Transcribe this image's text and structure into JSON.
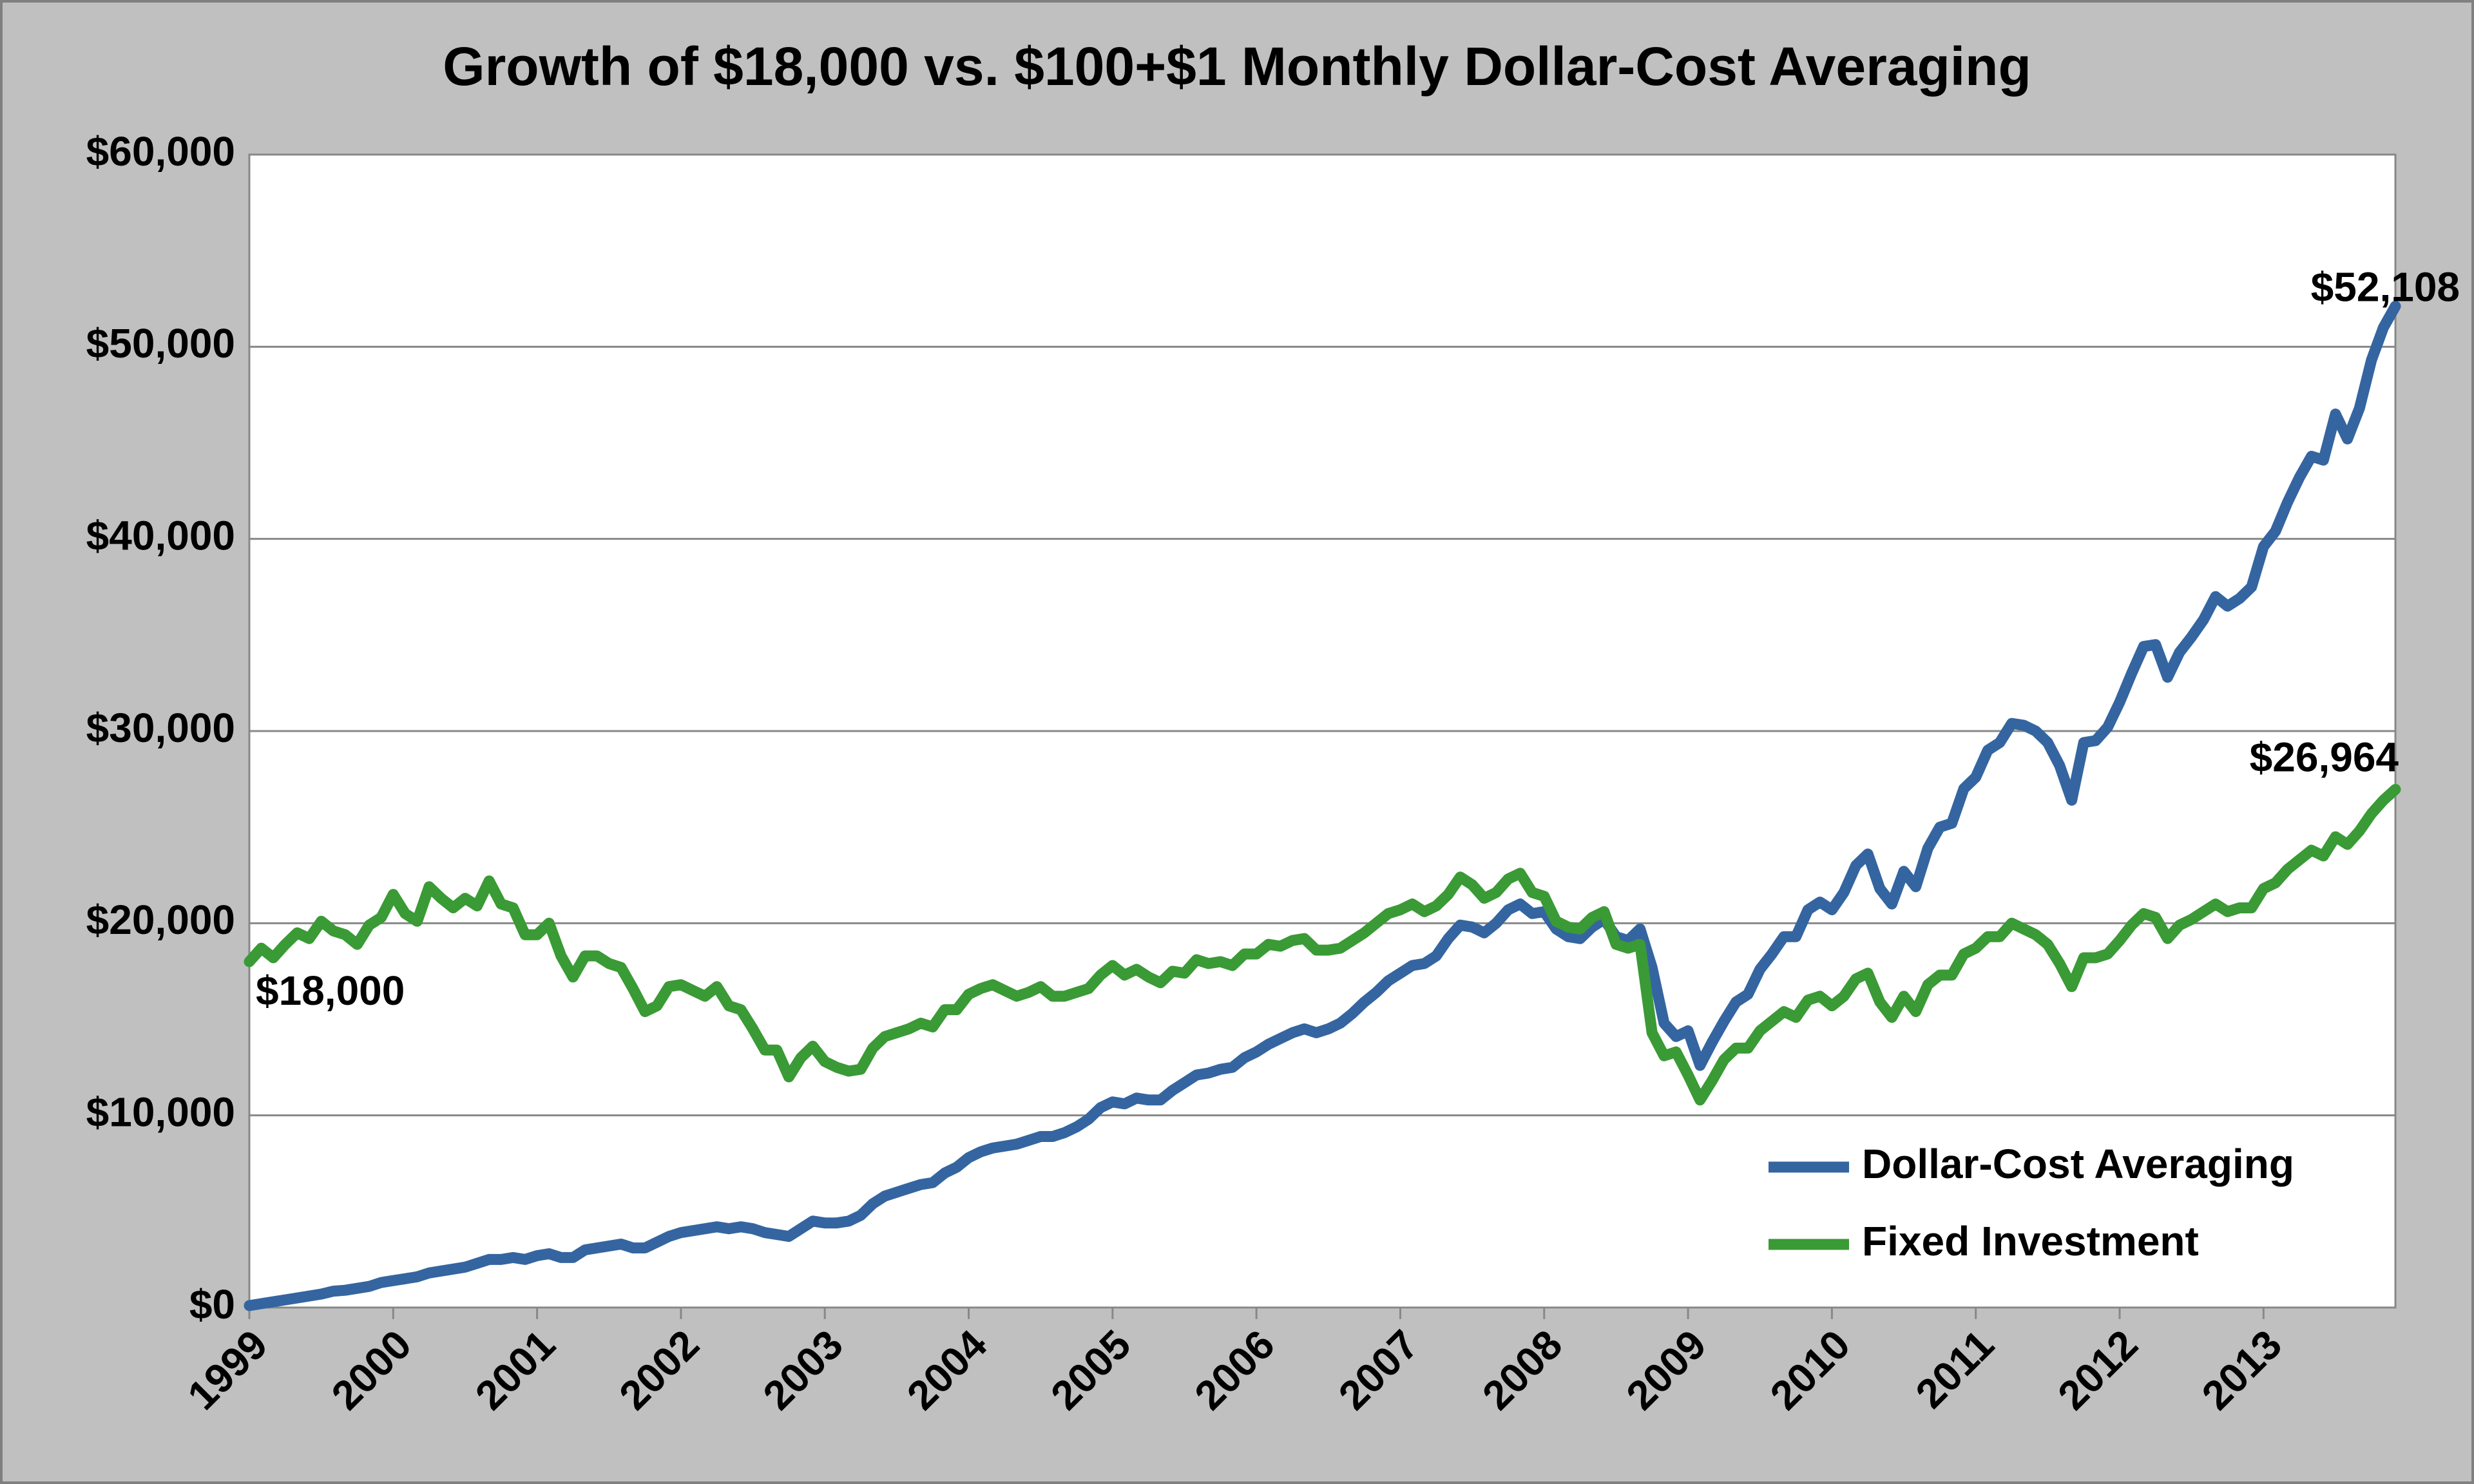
{
  "chart_data": {
    "type": "line",
    "title": "Growth of $18,000 vs. $100+$1 Monthly Dollar-Cost Averaging",
    "categories": [
      "1999",
      null,
      null,
      null,
      null,
      null,
      null,
      null,
      null,
      null,
      null,
      null,
      "2000",
      null,
      null,
      null,
      null,
      null,
      null,
      null,
      null,
      null,
      null,
      null,
      "2001",
      null,
      null,
      null,
      null,
      null,
      null,
      null,
      null,
      null,
      null,
      null,
      "2002",
      null,
      null,
      null,
      null,
      null,
      null,
      null,
      null,
      null,
      null,
      null,
      "2003",
      null,
      null,
      null,
      null,
      null,
      null,
      null,
      null,
      null,
      null,
      null,
      "2004",
      null,
      null,
      null,
      null,
      null,
      null,
      null,
      null,
      null,
      null,
      null,
      "2005",
      null,
      null,
      null,
      null,
      null,
      null,
      null,
      null,
      null,
      null,
      null,
      "2006",
      null,
      null,
      null,
      null,
      null,
      null,
      null,
      null,
      null,
      null,
      null,
      "2007",
      null,
      null,
      null,
      null,
      null,
      null,
      null,
      null,
      null,
      null,
      null,
      "2008",
      null,
      null,
      null,
      null,
      null,
      null,
      null,
      null,
      null,
      null,
      null,
      "2009",
      null,
      null,
      null,
      null,
      null,
      null,
      null,
      null,
      null,
      null,
      null,
      "2010",
      null,
      null,
      null,
      null,
      null,
      null,
      null,
      null,
      null,
      null,
      null,
      "2011",
      null,
      null,
      null,
      null,
      null,
      null,
      null,
      null,
      null,
      null,
      null,
      "2012",
      null,
      null,
      null,
      null,
      null,
      null,
      null,
      null,
      null,
      null,
      null,
      "2013",
      null,
      null,
      null,
      null,
      null,
      null,
      null,
      null,
      null,
      null,
      null
    ],
    "ylim": [
      0,
      60000
    ],
    "yticks": [
      {
        "value": 0,
        "label": "$0"
      },
      {
        "value": 10000,
        "label": "$10,000"
      },
      {
        "value": 20000,
        "label": "$20,000"
      },
      {
        "value": 30000,
        "label": "$30,000"
      },
      {
        "value": 40000,
        "label": "$40,000"
      },
      {
        "value": 50000,
        "label": "$50,000"
      },
      {
        "value": 60000,
        "label": "$60,000"
      }
    ],
    "grid": true,
    "legend": "lower-right",
    "series": [
      {
        "name": "Dollar-Cost Averaging",
        "color": "#3465a0",
        "values": [
          100,
          200,
          300,
          400,
          500,
          600,
          700,
          850,
          900,
          1000,
          1100,
          1300,
          1400,
          1500,
          1600,
          1800,
          1900,
          2000,
          2100,
          2300,
          2500,
          2500,
          2600,
          2500,
          2700,
          2800,
          2600,
          2600,
          3000,
          3100,
          3200,
          3300,
          3100,
          3100,
          3400,
          3700,
          3900,
          4000,
          4100,
          4200,
          4100,
          4200,
          4100,
          3900,
          3800,
          3700,
          4100,
          4500,
          4400,
          4400,
          4500,
          4800,
          5400,
          5800,
          6000,
          6200,
          6400,
          6500,
          7000,
          7300,
          7800,
          8100,
          8300,
          8400,
          8500,
          8700,
          8900,
          8900,
          9100,
          9400,
          9800,
          10400,
          10700,
          10600,
          10900,
          10800,
          10800,
          11300,
          11700,
          12100,
          12200,
          12400,
          12500,
          13000,
          13300,
          13700,
          14000,
          14300,
          14500,
          14300,
          14500,
          14800,
          15300,
          15900,
          16400,
          17000,
          17400,
          17800,
          17900,
          18300,
          19200,
          19900,
          19800,
          19500,
          20000,
          20700,
          21000,
          20500,
          20600,
          19700,
          19300,
          19200,
          19800,
          20200,
          19300,
          19100,
          19700,
          17700,
          14800,
          14100,
          14400,
          12600,
          13800,
          14900,
          15900,
          16300,
          17600,
          18400,
          19300,
          19300,
          20700,
          21100,
          20700,
          21600,
          23000,
          23600,
          21800,
          21000,
          22700,
          21900,
          23900,
          25000,
          25200,
          27000,
          27600,
          29000,
          29400,
          30400,
          30300,
          30000,
          29400,
          28200,
          26400,
          29400,
          29500,
          30200,
          31500,
          33000,
          34400,
          34500,
          32800,
          34100,
          34900,
          35800,
          37000,
          36500,
          36900,
          37500,
          39600,
          40400,
          41900,
          43200,
          44300,
          44100,
          46500,
          45200,
          46800,
          49300,
          51000,
          52108
        ],
        "value_labels": [
          null,
          null,
          null,
          null,
          null,
          null,
          null,
          null,
          null,
          null,
          null,
          null,
          null,
          null,
          null,
          null,
          null,
          null,
          null,
          null,
          null,
          null,
          null,
          null,
          null,
          null,
          null,
          null,
          null,
          null,
          null,
          null,
          null,
          null,
          null,
          null,
          null,
          null,
          null,
          null,
          null,
          null,
          null,
          null,
          null,
          null,
          null,
          null,
          null,
          null,
          null,
          null,
          null,
          null,
          null,
          null,
          null,
          null,
          null,
          null,
          null,
          null,
          null,
          null,
          null,
          null,
          null,
          null,
          null,
          null,
          null,
          null,
          null,
          null,
          null,
          null,
          null,
          null,
          null,
          null,
          null,
          null,
          null,
          null,
          null,
          null,
          null,
          null,
          null,
          null,
          null,
          null,
          null,
          null,
          null,
          null,
          null,
          null,
          null,
          null,
          null,
          null,
          null,
          null,
          null,
          null,
          null,
          null,
          null,
          null,
          null,
          null,
          null,
          null,
          null,
          null,
          null,
          null,
          null,
          null,
          null,
          null,
          null,
          null,
          null,
          null,
          null,
          null,
          null,
          null,
          null,
          null,
          null,
          null,
          null,
          null,
          null,
          null,
          null,
          null,
          null,
          null,
          null,
          null,
          null,
          null,
          null,
          null,
          null,
          null,
          null,
          null,
          null,
          null,
          null,
          null,
          null,
          null,
          null,
          null,
          null,
          null,
          null,
          null,
          null,
          null,
          null,
          null,
          null,
          null,
          null,
          null,
          null,
          null,
          null,
          null,
          null,
          null,
          null,
          "$52,108"
        ]
      },
      {
        "name": "Fixed Investment",
        "color": "#3a9a35",
        "values": [
          18000,
          18700,
          18200,
          18900,
          19500,
          19200,
          20100,
          19600,
          19400,
          18900,
          19900,
          20300,
          21500,
          20500,
          20100,
          21900,
          21300,
          20800,
          21300,
          20900,
          22200,
          21000,
          20800,
          19400,
          19400,
          20000,
          18300,
          17200,
          18300,
          18300,
          17900,
          17700,
          16600,
          15400,
          15700,
          16700,
          16800,
          16500,
          16200,
          16700,
          15700,
          15500,
          14500,
          13400,
          13400,
          12000,
          13000,
          13600,
          12800,
          12500,
          12300,
          12400,
          13500,
          14100,
          14300,
          14500,
          14800,
          14600,
          15500,
          15500,
          16300,
          16600,
          16800,
          16500,
          16200,
          16400,
          16700,
          16200,
          16200,
          16400,
          16600,
          17300,
          17800,
          17300,
          17600,
          17200,
          16900,
          17500,
          17400,
          18100,
          17900,
          18000,
          17800,
          18400,
          18400,
          18900,
          18800,
          19100,
          19200,
          18600,
          18600,
          18700,
          19100,
          19500,
          20000,
          20500,
          20700,
          21000,
          20600,
          20900,
          21500,
          22400,
          22000,
          21300,
          21600,
          22300,
          22600,
          21600,
          21400,
          20100,
          19800,
          19700,
          20300,
          20600,
          18900,
          18700,
          18900,
          14300,
          13100,
          13300,
          12100,
          10800,
          11800,
          12900,
          13500,
          13500,
          14400,
          14900,
          15400,
          15100,
          16000,
          16200,
          15700,
          16200,
          17100,
          17400,
          15900,
          15100,
          16200,
          15400,
          16800,
          17300,
          17300,
          18400,
          18700,
          19300,
          19300,
          20000,
          19700,
          19400,
          18900,
          17900,
          16700,
          18200,
          18200,
          18400,
          19100,
          19900,
          20500,
          20300,
          19200,
          19900,
          20200,
          20600,
          21000,
          20600,
          20800,
          20800,
          21800,
          22100,
          22800,
          23300,
          23800,
          23500,
          24500,
          24100,
          24800,
          25700,
          26400,
          26964
        ],
        "value_labels": [
          "$18,000",
          null,
          null,
          null,
          null,
          null,
          null,
          null,
          null,
          null,
          null,
          null,
          null,
          null,
          null,
          null,
          null,
          null,
          null,
          null,
          null,
          null,
          null,
          null,
          null,
          null,
          null,
          null,
          null,
          null,
          null,
          null,
          null,
          null,
          null,
          null,
          null,
          null,
          null,
          null,
          null,
          null,
          null,
          null,
          null,
          null,
          null,
          null,
          null,
          null,
          null,
          null,
          null,
          null,
          null,
          null,
          null,
          null,
          null,
          null,
          null,
          null,
          null,
          null,
          null,
          null,
          null,
          null,
          null,
          null,
          null,
          null,
          null,
          null,
          null,
          null,
          null,
          null,
          null,
          null,
          null,
          null,
          null,
          null,
          null,
          null,
          null,
          null,
          null,
          null,
          null,
          null,
          null,
          null,
          null,
          null,
          null,
          null,
          null,
          null,
          null,
          null,
          null,
          null,
          null,
          null,
          null,
          null,
          null,
          null,
          null,
          null,
          null,
          null,
          null,
          null,
          null,
          null,
          null,
          null,
          null,
          null,
          null,
          null,
          null,
          null,
          null,
          null,
          null,
          null,
          null,
          null,
          null,
          null,
          null,
          null,
          null,
          null,
          null,
          null,
          null,
          null,
          null,
          null,
          null,
          null,
          null,
          null,
          null,
          null,
          null,
          null,
          null,
          null,
          null,
          null,
          null,
          null,
          null,
          null,
          null,
          null,
          null,
          null,
          null,
          null,
          null,
          null,
          null,
          null,
          null,
          null,
          null,
          null,
          null,
          null,
          null,
          null,
          null,
          "$26,964"
        ]
      }
    ]
  }
}
